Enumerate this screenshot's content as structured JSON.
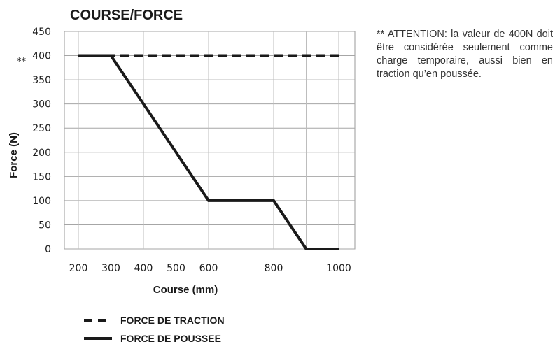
{
  "chart_data": {
    "type": "line",
    "title": "COURSE/FORCE",
    "xlabel": "Course (mm)",
    "ylabel": "Force  (N)",
    "xlim": [
      200,
      1000
    ],
    "ylim": [
      0,
      450
    ],
    "x_ticks": [
      200,
      300,
      400,
      500,
      600,
      800,
      1000
    ],
    "y_ticks": [
      0,
      50,
      100,
      150,
      200,
      250,
      300,
      350,
      400,
      450
    ],
    "x_grid": [
      200,
      300,
      400,
      500,
      600,
      700,
      800,
      900,
      1000
    ],
    "grid": true,
    "legend_position": "bottom-left",
    "series": [
      {
        "name": "FORCE DE TRACTION",
        "style": "dashed",
        "color": "#1a1a1a",
        "x": [
          200,
          1000
        ],
        "y": [
          400,
          400
        ]
      },
      {
        "name": "FORCE DE POUSSEE",
        "style": "solid",
        "color": "#1a1a1a",
        "x": [
          200,
          300,
          600,
          800,
          900,
          1000
        ],
        "y": [
          400,
          400,
          100,
          100,
          0,
          0
        ]
      }
    ],
    "annotations": [
      {
        "text": "**",
        "y": 400
      }
    ]
  },
  "note": {
    "text": "** ATTENTION: la valeur de 400N doit être considérée seulement comme charge temporaire, aussi bien en traction qu’en poussée."
  }
}
